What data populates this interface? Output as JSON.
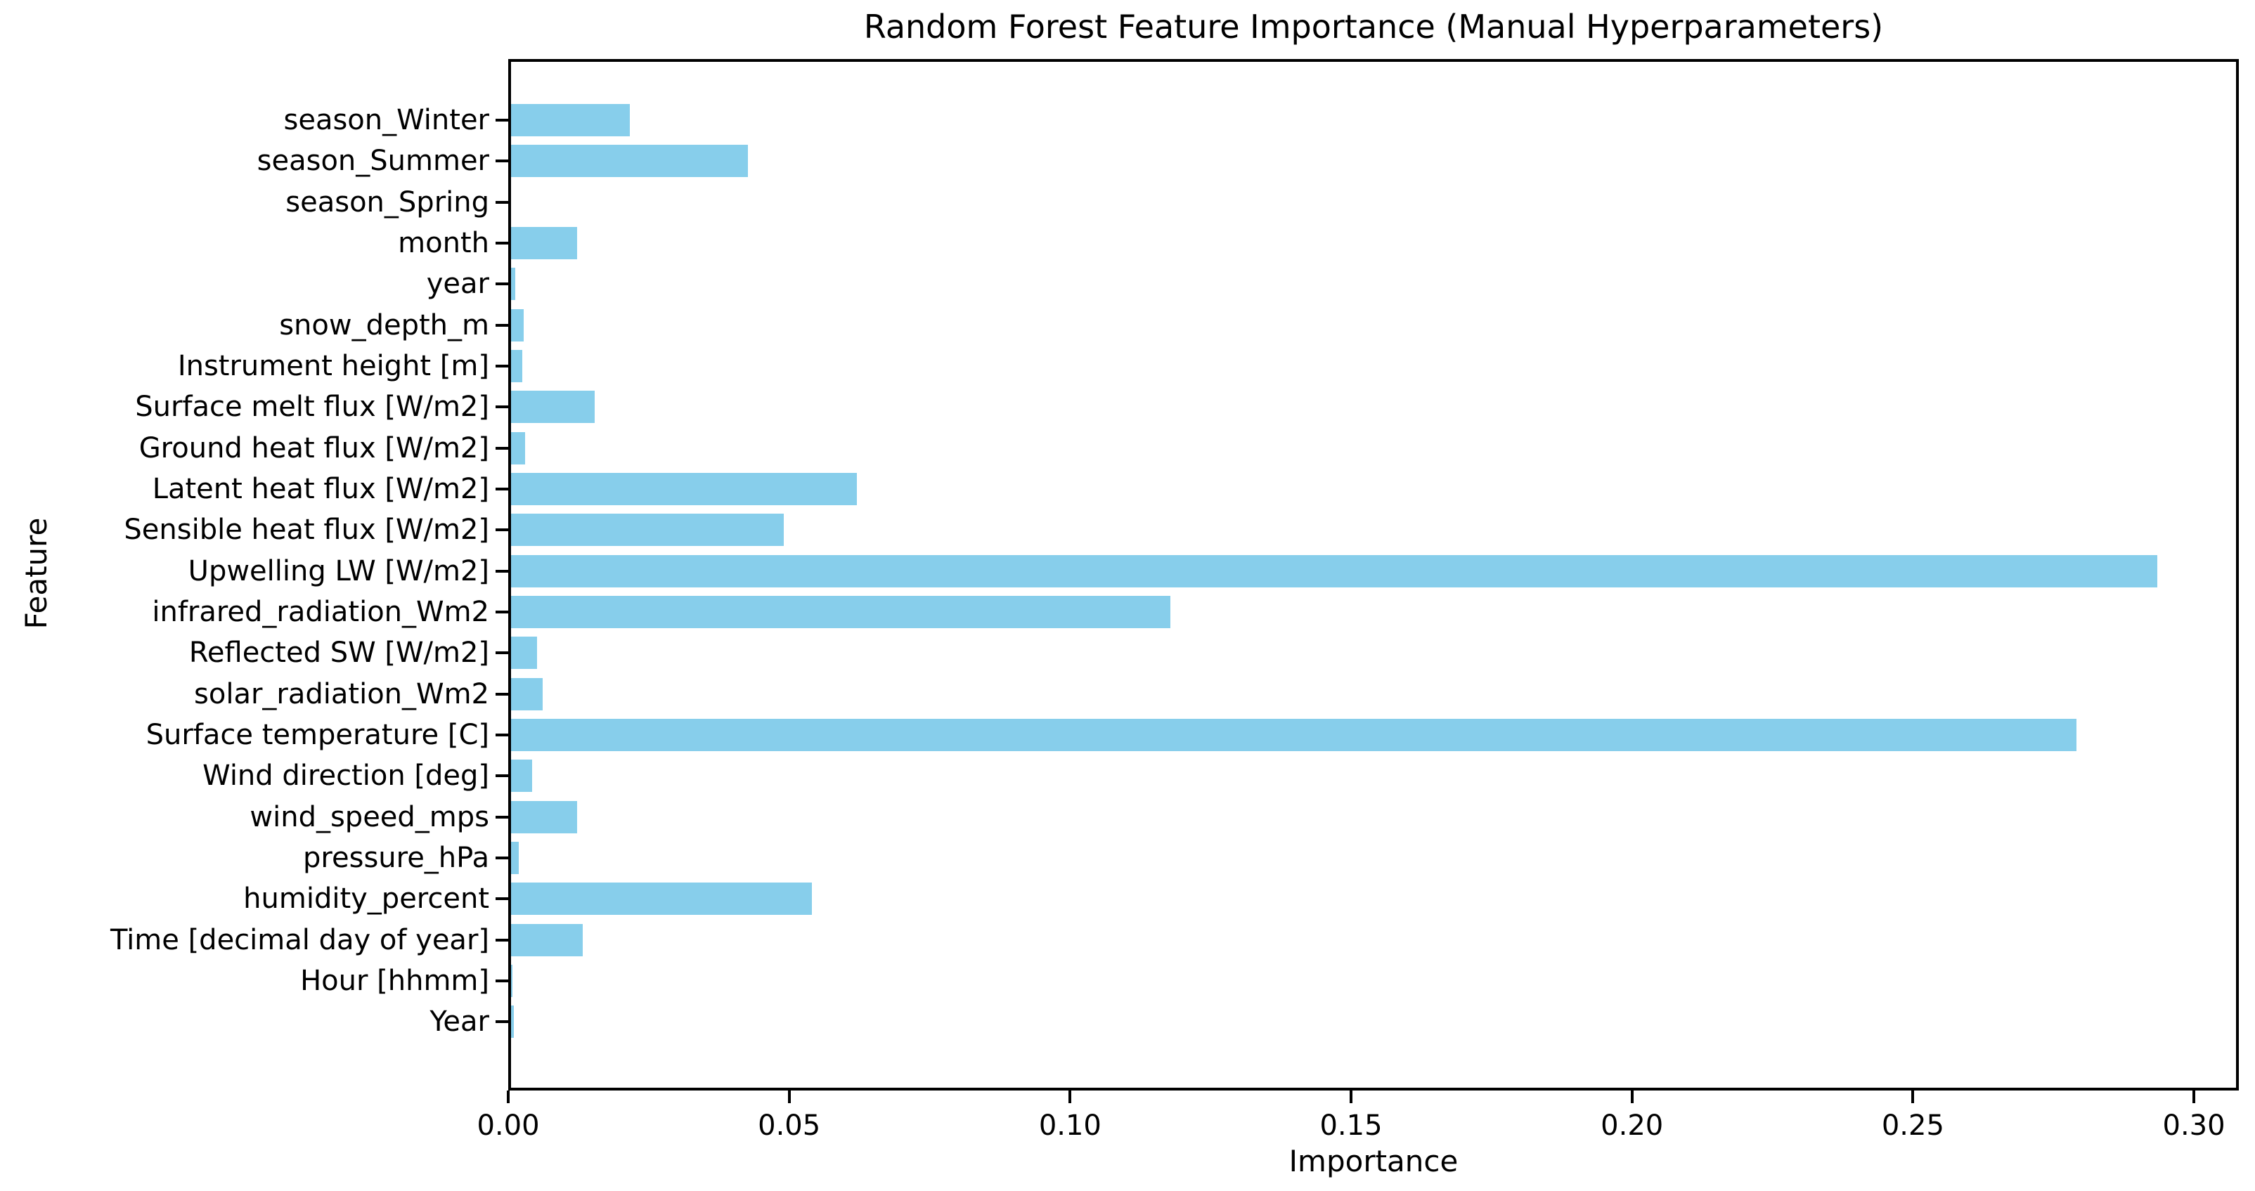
{
  "figure": {
    "background": "#ffffff",
    "text_color": "#000000",
    "spine_color": "#000000"
  },
  "chart_data": {
    "type": "bar",
    "orientation": "horizontal",
    "title": "Random Forest Feature Importance (Manual Hyperparameters)",
    "xlabel": "Importance",
    "ylabel": "Feature",
    "bar_color": "#87CEEB",
    "grid": false,
    "legend": false,
    "xlim": [
      0,
      0.308
    ],
    "xtick_values": [
      0,
      0.05,
      0.1,
      0.15,
      0.2,
      0.25,
      0.3
    ],
    "xtick_labels": [
      "0.00",
      "0.05",
      "0.10",
      "0.15",
      "0.20",
      "0.25",
      "0.30"
    ],
    "categories": [
      "season_Winter",
      "season_Summer",
      "season_Spring",
      "month",
      "year",
      "snow_depth_m",
      "Instrument height [m]",
      "Surface melt flux [W/m2]",
      "Ground heat flux [W/m2]",
      "Latent heat flux [W/m2]",
      "Sensible heat flux [W/m2]",
      "Upwelling LW [W/m2]",
      "infrared_radiation_Wm2",
      "Reflected SW [W/m2]",
      "solar_radiation_Wm2",
      "Surface temperature [C]",
      "Wind direction [deg]",
      "wind_speed_mps",
      "pressure_hPa",
      "humidity_percent",
      "Time [decimal day of year]",
      "Hour [hhmm]",
      "Year"
    ],
    "values": [
      0.0217,
      0.0427,
      0.0005,
      0.0122,
      0.0012,
      0.0028,
      0.0025,
      0.0154,
      0.003,
      0.062,
      0.049,
      0.2935,
      0.1178,
      0.0051,
      0.0061,
      0.2791,
      0.0042,
      0.0123,
      0.0019,
      0.0541,
      0.0132,
      0.0007,
      0.001
    ]
  }
}
